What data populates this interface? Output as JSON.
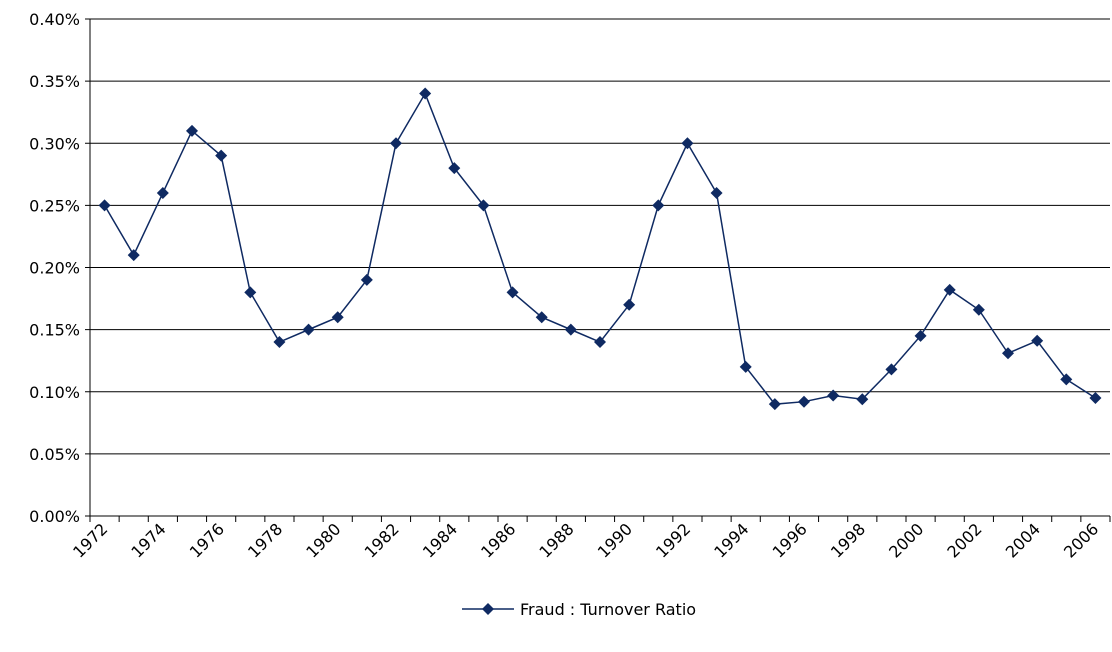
{
  "chart_data": {
    "type": "line",
    "categories": [
      "1972",
      null,
      "1974",
      null,
      "1976",
      null,
      "1978",
      null,
      "1980",
      null,
      "1982",
      null,
      "1984",
      null,
      "1986",
      null,
      "1988",
      null,
      "1990",
      null,
      "1992",
      null,
      "1994",
      null,
      "1996",
      null,
      "1998",
      null,
      "2000",
      null,
      "2002",
      null,
      "2004",
      null,
      "2006"
    ],
    "series": [
      {
        "name": "Fraud : Turnover Ratio",
        "color": "#0f2a62",
        "values": [
          0.25,
          0.21,
          0.26,
          0.31,
          0.29,
          0.18,
          0.14,
          0.15,
          0.16,
          0.19,
          0.3,
          0.34,
          0.28,
          0.25,
          0.18,
          0.16,
          0.15,
          0.14,
          0.17,
          0.25,
          0.3,
          0.26,
          0.12,
          0.09,
          0.092,
          0.097,
          0.094,
          0.118,
          0.145,
          0.182,
          0.166,
          0.131,
          0.141,
          0.11,
          0.095
        ]
      }
    ],
    "ylim": [
      0,
      0.4
    ],
    "yticks": [
      {
        "value": 0,
        "label": "0.00%"
      },
      {
        "value": 0.05,
        "label": "0.05%"
      },
      {
        "value": 0.1,
        "label": "0.10%"
      },
      {
        "value": 0.15,
        "label": "0.15%"
      },
      {
        "value": 0.2,
        "label": "0.20%"
      },
      {
        "value": 0.25,
        "label": "0.25%"
      },
      {
        "value": 0.3,
        "label": "0.30%"
      },
      {
        "value": 0.35,
        "label": "0.35%"
      },
      {
        "value": 0.4,
        "label": "0.40%"
      }
    ],
    "grid": true,
    "legend": "bottom"
  }
}
